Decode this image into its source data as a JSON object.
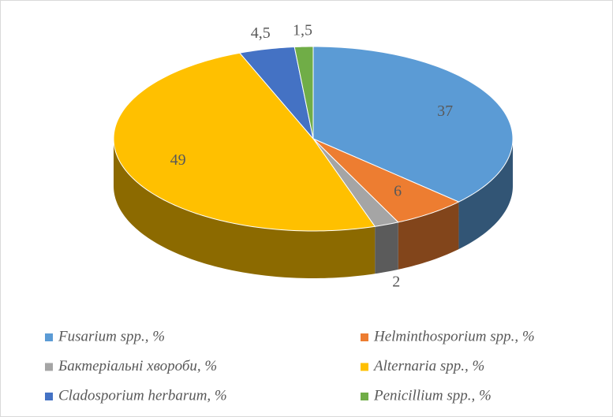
{
  "chart_data": {
    "type": "pie3d",
    "categories": [
      "Fusarium spp., %",
      "Helminthosporium spp., %",
      "Бактеріальні хвороби, %",
      "Alternaria spp., %",
      "Cladosporium herbarum, %",
      "Penicillium spp., %"
    ],
    "values": [
      37,
      6,
      2,
      49,
      4.5,
      1.5
    ],
    "value_labels": [
      "37",
      "6",
      "2",
      "49",
      "4,5",
      "1,5"
    ],
    "colors": [
      "#5b9bd5",
      "#ed7d31",
      "#a5a5a5",
      "#ffc000",
      "#4472c4",
      "#70ad47"
    ],
    "legend": "bottom"
  }
}
